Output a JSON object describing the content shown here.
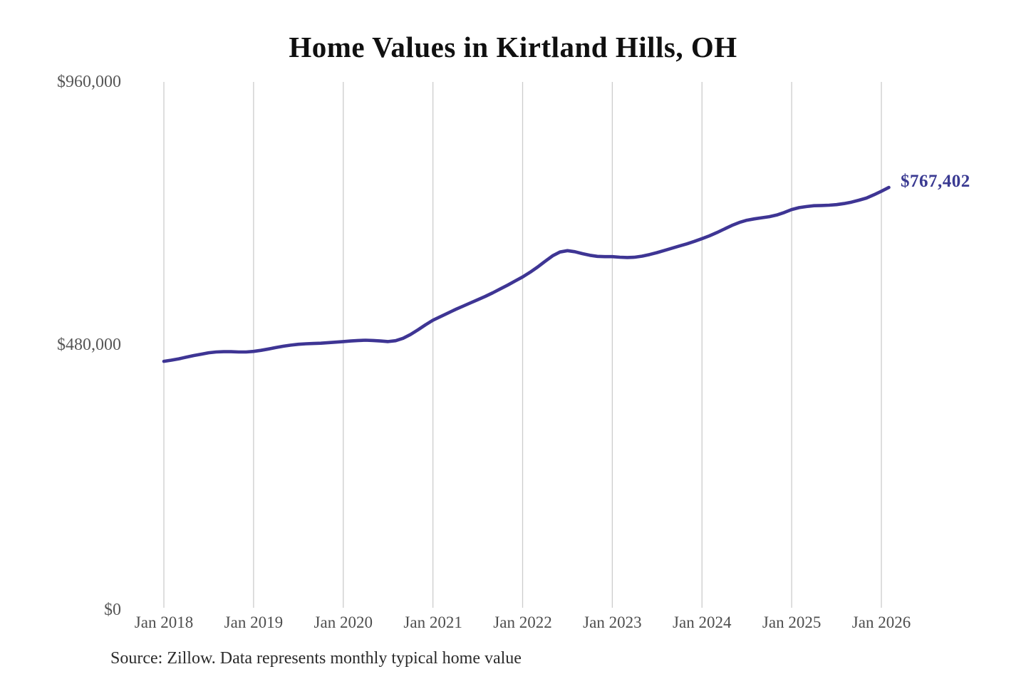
{
  "chart_data": {
    "type": "line",
    "title": "Home Values in Kirtland Hills, OH",
    "x_tick_labels": [
      "Jan 2018",
      "Jan 2019",
      "Jan 2020",
      "Jan 2021",
      "Jan 2022",
      "Jan 2023",
      "Jan 2024",
      "Jan 2025",
      "Jan 2026"
    ],
    "y_tick_labels": [
      "$0",
      "$480,000",
      "$960,000"
    ],
    "y_ticks": [
      0,
      480000,
      960000
    ],
    "ylim": [
      0,
      960000
    ],
    "x_start": "Jan 2018",
    "x_end": "Feb 2026",
    "x_unit": "month",
    "grid": "vertical-only",
    "legend": "none",
    "series": [
      {
        "name": "Monthly typical home value",
        "values": [
          450000,
          452000,
          454500,
          457500,
          460500,
          463000,
          465500,
          467000,
          467500,
          467500,
          467000,
          467000,
          468000,
          470000,
          472500,
          475000,
          477500,
          479500,
          481000,
          482000,
          482500,
          483000,
          484000,
          485000,
          486000,
          487000,
          488000,
          488500,
          488000,
          487000,
          486000,
          487500,
          492000,
          499000,
          507500,
          516500,
          525000,
          531500,
          538000,
          544500,
          550500,
          556500,
          562500,
          568500,
          575000,
          582000,
          589000,
          596500,
          604000,
          612500,
          622000,
          632500,
          642500,
          649500,
          652000,
          650000,
          646500,
          643500,
          641500,
          641000,
          641000,
          640000,
          639500,
          640000,
          642000,
          645000,
          648500,
          652500,
          656500,
          660500,
          664500,
          669000,
          674000,
          679000,
          685000,
          691500,
          698000,
          703500,
          707500,
          710000,
          712000,
          714000,
          717000,
          721500,
          727000,
          730500,
          732500,
          734000,
          734500,
          735000,
          736000,
          738000,
          740500,
          744000,
          748000,
          754000,
          760500,
          767402
        ]
      }
    ],
    "last_value": 767402,
    "end_label": "$767,402",
    "source": "Source: Zillow. Data represents monthly typical home value",
    "colors": {
      "line": "#3E3594",
      "end_label": "#3A3A92",
      "gridline": "#CCCCCC",
      "axis_text": "#4E4E4E",
      "title_text": "#101010"
    }
  }
}
